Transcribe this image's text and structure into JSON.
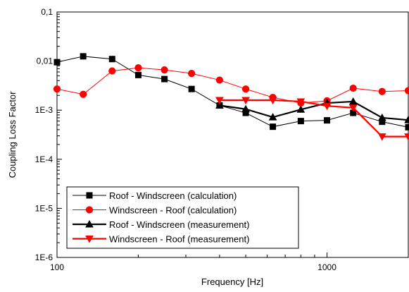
{
  "chart_data": {
    "type": "line",
    "title": "",
    "xlabel": "Frequency [Hz]",
    "ylabel": "Coupling Loss Factor",
    "xscale": "log",
    "yscale": "log",
    "xlim": [
      100,
      2000
    ],
    "ylim": [
      1e-06,
      0.1
    ],
    "x_ticks": [
      {
        "value": 100,
        "label": "100"
      },
      {
        "value": 1000,
        "label": "1000"
      }
    ],
    "y_ticks": [
      {
        "value": 1e-06,
        "label": "1E-6"
      },
      {
        "value": 1e-05,
        "label": "1E-5"
      },
      {
        "value": 0.0001,
        "label": "1E-4"
      },
      {
        "value": 0.001,
        "label": "1E-3"
      },
      {
        "value": 0.01,
        "label": "0,01"
      },
      {
        "value": 0.1,
        "label": "0,1"
      }
    ],
    "grid": false,
    "legend_position": "bottom-left",
    "series": [
      {
        "name": "Roof - Windscreen (calculation)",
        "color": "#000000",
        "marker": "square",
        "line_width": 1,
        "x": [
          100,
          125,
          160,
          200,
          250,
          315,
          400,
          500,
          630,
          800,
          1000,
          1250,
          1600,
          2000
        ],
        "y": [
          0.0095,
          0.0125,
          0.011,
          0.0052,
          0.0043,
          0.0027,
          0.00125,
          0.00088,
          0.00046,
          0.0006,
          0.00062,
          0.00088,
          0.00058,
          0.00045
        ]
      },
      {
        "name": "Windscreen - Roof (calculation)",
        "color": "#ff0000",
        "marker": "circle",
        "line_width": 1,
        "x": [
          100,
          125,
          160,
          200,
          250,
          315,
          400,
          500,
          630,
          800,
          1000,
          1250,
          1600,
          2000
        ],
        "y": [
          0.0027,
          0.0021,
          0.0063,
          0.0073,
          0.0066,
          0.0056,
          0.0041,
          0.0027,
          0.00182,
          0.0014,
          0.00155,
          0.0028,
          0.0024,
          0.0025
        ]
      },
      {
        "name": "Roof - Windscreen (measurement)",
        "color": "#000000",
        "marker": "triangle-up",
        "line_width": 2.2,
        "x": [
          400,
          500,
          630,
          800,
          1000,
          1250,
          1600,
          2000
        ],
        "y": [
          0.00125,
          0.00105,
          0.00072,
          0.00103,
          0.0014,
          0.0015,
          0.0007,
          0.00063
        ]
      },
      {
        "name": "Windscreen - Roof (measurement)",
        "color": "#ff0000",
        "marker": "triangle-down",
        "line_width": 2.2,
        "x": [
          400,
          500,
          630,
          800,
          1000,
          1250,
          1600,
          2000
        ],
        "y": [
          0.0016,
          0.0016,
          0.0016,
          0.0015,
          0.00122,
          0.00112,
          0.00029,
          0.00029
        ]
      }
    ]
  }
}
